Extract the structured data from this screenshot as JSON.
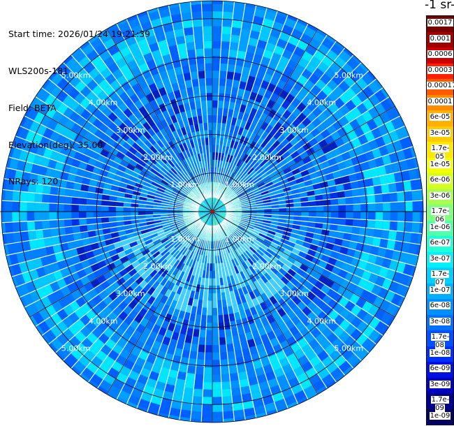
{
  "info": {
    "start_time": "Start time: 2026/01/24 19:21:39",
    "instrument": "WLS200s-181",
    "field": "Field: BETA",
    "elevation": "Elevation(deg): 35.00",
    "nrays": "NRays: 120"
  },
  "colorbar": {
    "title": "-1 sr-",
    "labels": [
      "0.0017",
      "0.001",
      "0.0006",
      "0.0003",
      "0.00017",
      "0.0001",
      "6e-05",
      "3e-05",
      "1.7e-05",
      "1e-05",
      "6e-06",
      "3e-06",
      "1.7e-06",
      "1e-06",
      "6e-07",
      "3e-07",
      "1.7e-07",
      "1e-07",
      "6e-08",
      "3e-08",
      "1.7e-08",
      "1e-08",
      "6e-09",
      "3e-09",
      "1.7e-09",
      "1e-09"
    ],
    "colors": [
      "#7a0000",
      "#a00000",
      "#cc0000",
      "#ff2000",
      "#ff5a00",
      "#ff8c00",
      "#ffb000",
      "#ffcc00",
      "#ffe800",
      "#f4ff00",
      "#d4ff20",
      "#a8ff50",
      "#80ff80",
      "#50ffaa",
      "#20ffd8",
      "#00f0ff",
      "#00d0ff",
      "#00b0ff",
      "#0090ff",
      "#0070ff",
      "#0050ff",
      "#0030ff",
      "#0010e0",
      "#0000c0",
      "#00008a",
      "#000060"
    ]
  },
  "range_labels": [
    "1.00km",
    "2.00km",
    "3.00km",
    "4.00km",
    "5.00km"
  ],
  "chart_data": {
    "type": "heatmap",
    "field": "BETA",
    "nrays": 120,
    "elevation_deg": 35.0,
    "rings_km": [
      1,
      2,
      3,
      4,
      5
    ],
    "max_range_km": 6.6
  }
}
